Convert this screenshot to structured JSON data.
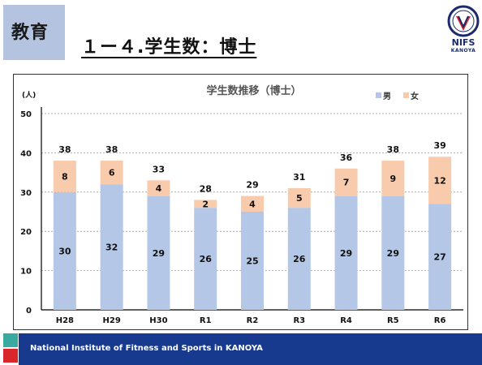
{
  "header": {
    "section_tag": "教育",
    "title": "１ー４.学生数：博士"
  },
  "logo": {
    "line1": "NIFS",
    "line2": "KANOYA",
    "badge_text": "KANOYA"
  },
  "footer": {
    "text": "National Institute of Fitness and Sports in KANOYA"
  },
  "colors": {
    "male": "#b4c7e7",
    "female": "#f8cbad",
    "footer": "#17398e",
    "accent_teal": "#3aa9a0",
    "accent_red": "#d9262a"
  },
  "chart_data": {
    "type": "bar",
    "stacked": true,
    "title": "学生数推移（博士）",
    "ylabel": "(人)",
    "ylim": [
      0,
      50
    ],
    "yticks": [
      0,
      10,
      20,
      30,
      40,
      50
    ],
    "grid": true,
    "legend_position": "top-right",
    "categories": [
      "H28",
      "H29",
      "H30",
      "R1",
      "R2",
      "R3",
      "R4",
      "R5",
      "R6"
    ],
    "series": [
      {
        "name": "男",
        "values": [
          30,
          32,
          29,
          26,
          25,
          26,
          29,
          29,
          27
        ]
      },
      {
        "name": "女",
        "values": [
          8,
          6,
          4,
          2,
          4,
          5,
          7,
          9,
          12
        ]
      }
    ],
    "totals": [
      38,
      38,
      33,
      28,
      29,
      31,
      36,
      38,
      39
    ]
  }
}
